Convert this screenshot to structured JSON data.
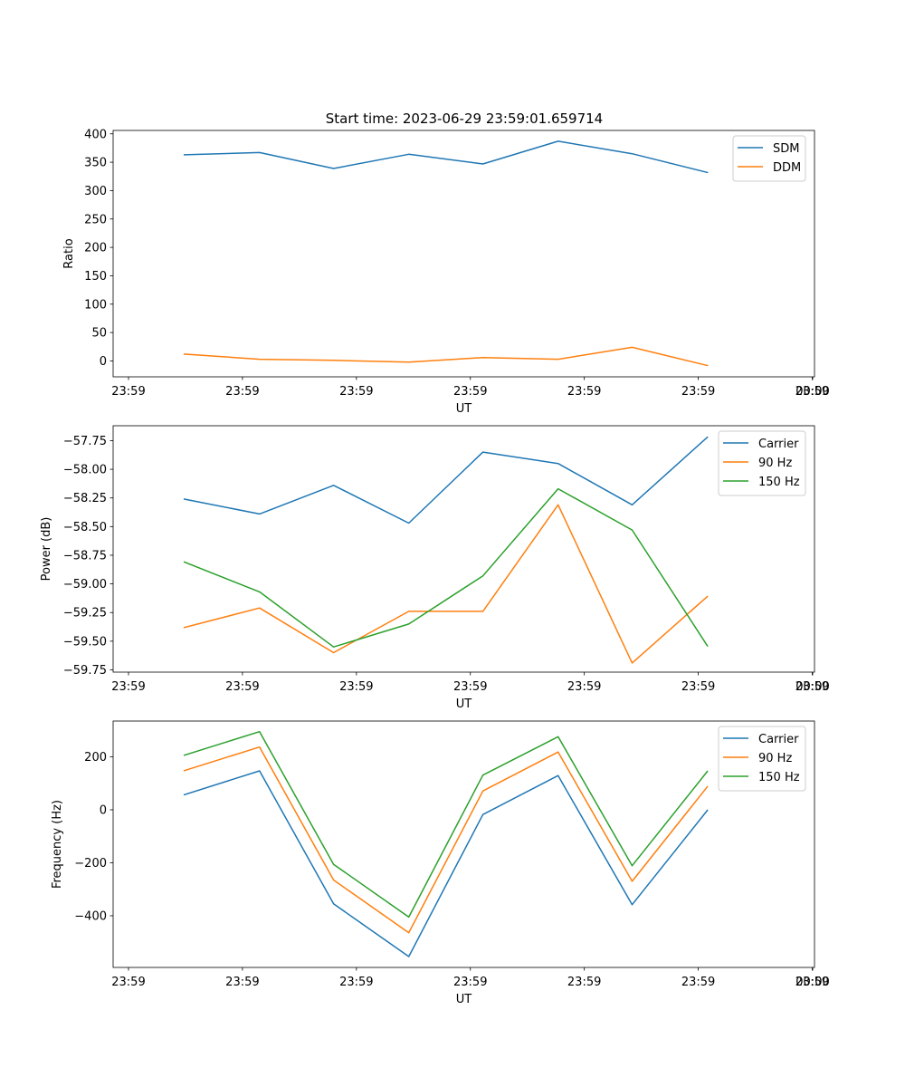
{
  "figure": {
    "title": "Start time: 2023-06-29 23:59:01.659714"
  },
  "chart_data": [
    {
      "type": "line",
      "title": "Start time: 2023-06-29 23:59:01.659714",
      "xlabel": "UT",
      "ylabel": "Ratio",
      "x_tick_labels": [
        "23:59",
        "23:59",
        "23:59",
        "23:59",
        "23:59",
        "23:59",
        "23:59"
      ],
      "x_last_tick_label": "00:00",
      "x_ticks": [
        0,
        1,
        2,
        3,
        4,
        5,
        6
      ],
      "xlim": [
        -0.135,
        6.02
      ],
      "x": [
        0.49,
        1.15,
        1.8,
        2.46,
        3.11,
        3.77,
        4.42,
        5.08
      ],
      "ylim": [
        -28,
        406
      ],
      "y_ticks": [
        0,
        50,
        100,
        150,
        200,
        250,
        300,
        350,
        400
      ],
      "y_tick_labels": [
        "0",
        "50",
        "100",
        "150",
        "200",
        "250",
        "300",
        "350",
        "400"
      ],
      "legend_position": "top-right",
      "series": [
        {
          "name": "SDM",
          "color": "#1f77b4",
          "values": [
            363,
            367,
            339,
            364,
            347,
            387,
            365,
            332
          ]
        },
        {
          "name": "DDM",
          "color": "#ff7f0e",
          "values": [
            12,
            3,
            1,
            -2,
            6,
            3,
            24,
            -8
          ]
        }
      ]
    },
    {
      "type": "line",
      "xlabel": "UT",
      "ylabel": "Power (dB)",
      "x_tick_labels": [
        "23:59",
        "23:59",
        "23:59",
        "23:59",
        "23:59",
        "23:59",
        "23:59"
      ],
      "x_last_tick_label": "00:00",
      "x_ticks": [
        0,
        1,
        2,
        3,
        4,
        5,
        6
      ],
      "xlim": [
        -0.135,
        6.02
      ],
      "x": [
        0.49,
        1.15,
        1.8,
        2.46,
        3.11,
        3.77,
        4.42,
        5.08
      ],
      "ylim": [
        -59.77,
        -57.62
      ],
      "y_ticks": [
        -59.75,
        -59.5,
        -59.25,
        -59.0,
        -58.75,
        -58.5,
        -58.25,
        -58.0,
        -57.75
      ],
      "y_tick_labels": [
        "−59.75",
        "−59.50",
        "−59.25",
        "−59.00",
        "−58.75",
        "−58.50",
        "−58.25",
        "−58.00",
        "−57.75"
      ],
      "legend_position": "top-right",
      "series": [
        {
          "name": "Carrier",
          "color": "#1f77b4",
          "values": [
            -58.26,
            -58.39,
            -58.14,
            -58.47,
            -57.85,
            -57.95,
            -58.31,
            -57.72
          ]
        },
        {
          "name": "90 Hz",
          "color": "#ff7f0e",
          "values": [
            -59.38,
            -59.21,
            -59.6,
            -59.24,
            -59.24,
            -58.31,
            -59.69,
            -59.11
          ]
        },
        {
          "name": "150 Hz",
          "color": "#2ca02c",
          "values": [
            -58.81,
            -59.07,
            -59.55,
            -59.35,
            -58.93,
            -58.17,
            -58.53,
            -59.54
          ]
        }
      ]
    },
    {
      "type": "line",
      "xlabel": "UT",
      "ylabel": "Frequency (Hz)",
      "x_tick_labels": [
        "23:59",
        "23:59",
        "23:59",
        "23:59",
        "23:59",
        "23:59",
        "23:59"
      ],
      "x_last_tick_label": "00:00",
      "x_ticks": [
        0,
        1,
        2,
        3,
        4,
        5,
        6
      ],
      "xlim": [
        -0.135,
        6.02
      ],
      "x": [
        0.49,
        1.15,
        1.8,
        2.46,
        3.11,
        3.77,
        4.42,
        5.08
      ],
      "ylim": [
        -595,
        335
      ],
      "y_ticks": [
        -400,
        -200,
        0,
        200
      ],
      "y_tick_labels": [
        "−400",
        "−200",
        "0",
        "200"
      ],
      "legend_position": "top-right",
      "series": [
        {
          "name": "Carrier",
          "color": "#1f77b4",
          "values": [
            57,
            147,
            -355,
            -554,
            -18,
            129,
            -358,
            -2
          ]
        },
        {
          "name": "90 Hz",
          "color": "#ff7f0e",
          "values": [
            148,
            237,
            -265,
            -464,
            71,
            218,
            -270,
            87
          ]
        },
        {
          "name": "150 Hz",
          "color": "#2ca02c",
          "values": [
            206,
            295,
            -206,
            -405,
            131,
            276,
            -211,
            145
          ]
        }
      ]
    }
  ]
}
